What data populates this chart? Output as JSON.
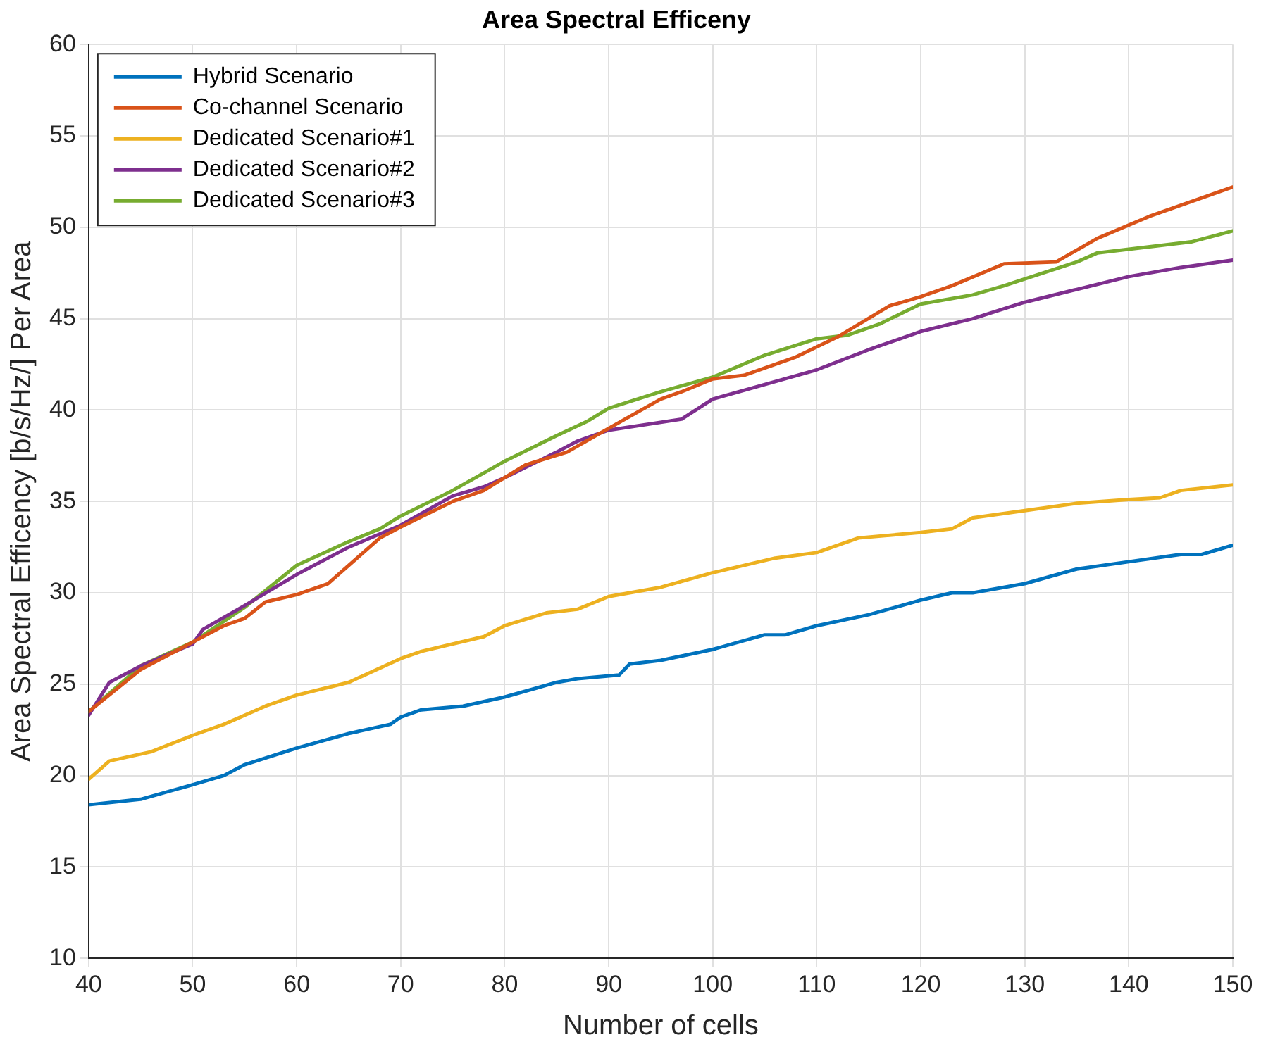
{
  "chart_data": {
    "type": "line",
    "title": "Area Spectral Efficeny",
    "xlabel": "Number of cells",
    "ylabel": "Area Spectral Efficency [b/s/Hz/] Per Area",
    "xlim": [
      40,
      150
    ],
    "xticks": [
      40,
      50,
      60,
      70,
      80,
      90,
      100,
      110,
      120,
      130,
      140,
      150
    ],
    "ylim": [
      10,
      60
    ],
    "yticks": [
      10,
      15,
      20,
      25,
      30,
      35,
      40,
      45,
      50,
      55,
      60
    ],
    "grid": true,
    "legend": "top left",
    "marker": "none",
    "line_style": "solid",
    "series": [
      {
        "name": "Hybrid Scenario",
        "color": "#0072bd",
        "x": [
          40,
          45,
          50,
          53,
          55,
          60,
          65,
          69,
          70,
          72,
          76,
          80,
          85,
          87,
          91,
          92,
          95,
          100,
          105,
          107,
          110,
          115,
          120,
          123,
          125,
          130,
          135,
          140,
          145,
          147,
          150
        ],
        "values": [
          18.4,
          18.7,
          19.5,
          20,
          20.6,
          21.5,
          22.3,
          22.8,
          23.2,
          23.6,
          23.8,
          24.3,
          25.1,
          25.3,
          25.5,
          26.1,
          26.3,
          26.9,
          27.7,
          27.7,
          28.2,
          28.8,
          29.6,
          30,
          30,
          30.5,
          31.3,
          31.7,
          32.1,
          32.1,
          32.6
        ]
      },
      {
        "name": "Co-channel Scenario",
        "color": "#d95319",
        "x": [
          40,
          45,
          50,
          53,
          55,
          57,
          60,
          63,
          68,
          70,
          75,
          78,
          80,
          82,
          86,
          90,
          95,
          97,
          100,
          103,
          108,
          112,
          117,
          120,
          123,
          128,
          133,
          137,
          142,
          150
        ],
        "values": [
          23.5,
          25.8,
          27.3,
          28.2,
          28.6,
          29.5,
          29.9,
          30.5,
          33,
          33.6,
          35,
          35.6,
          36.3,
          37,
          37.7,
          39,
          40.6,
          41,
          41.7,
          41.9,
          42.9,
          44,
          45.7,
          46.2,
          46.8,
          48,
          48.1,
          49.4,
          50.6,
          52.2
        ]
      },
      {
        "name": "Dedicated Scenario#1",
        "color": "#edb120",
        "x": [
          40,
          42,
          46,
          50,
          53,
          57,
          60,
          65,
          70,
          72,
          78,
          80,
          84,
          87,
          90,
          95,
          100,
          106,
          110,
          114,
          120,
          123,
          125,
          130,
          135,
          140,
          143,
          145,
          150
        ],
        "values": [
          19.8,
          20.8,
          21.3,
          22.2,
          22.8,
          23.8,
          24.4,
          25.1,
          26.4,
          26.8,
          27.6,
          28.2,
          28.9,
          29.1,
          29.8,
          30.3,
          31.1,
          31.9,
          32.2,
          33,
          33.3,
          33.5,
          34.1,
          34.5,
          34.9,
          35.1,
          35.2,
          35.6,
          35.9
        ]
      },
      {
        "name": "Dedicated Scenario#2",
        "color": "#7e2f8e",
        "x": [
          40,
          42,
          45,
          50,
          51,
          55,
          60,
          65,
          70,
          75,
          78,
          80,
          85,
          87,
          90,
          97,
          100,
          105,
          110,
          115,
          120,
          125,
          130,
          135,
          140,
          145,
          150
        ],
        "values": [
          23.3,
          25.1,
          26,
          27.2,
          28,
          29.3,
          31,
          32.5,
          33.7,
          35.3,
          35.8,
          36.3,
          37.7,
          38.3,
          38.9,
          39.5,
          40.6,
          41.4,
          42.2,
          43.3,
          44.3,
          45,
          45.9,
          46.6,
          47.3,
          47.8,
          48.2
        ]
      },
      {
        "name": "Dedicated Scenario#3",
        "color": "#77ac30",
        "x": [
          40,
          45,
          50,
          55,
          60,
          65,
          68,
          70,
          75,
          80,
          85,
          88,
          90,
          95,
          100,
          105,
          110,
          113,
          116,
          120,
          125,
          128,
          135,
          137,
          140,
          146,
          150
        ],
        "values": [
          23.5,
          26,
          27.3,
          29.2,
          31.5,
          32.8,
          33.5,
          34.2,
          35.6,
          37.2,
          38.6,
          39.4,
          40.1,
          41,
          41.8,
          43,
          43.9,
          44.1,
          44.7,
          45.8,
          46.3,
          46.8,
          48.1,
          48.6,
          48.8,
          49.2,
          49.8
        ]
      }
    ]
  }
}
